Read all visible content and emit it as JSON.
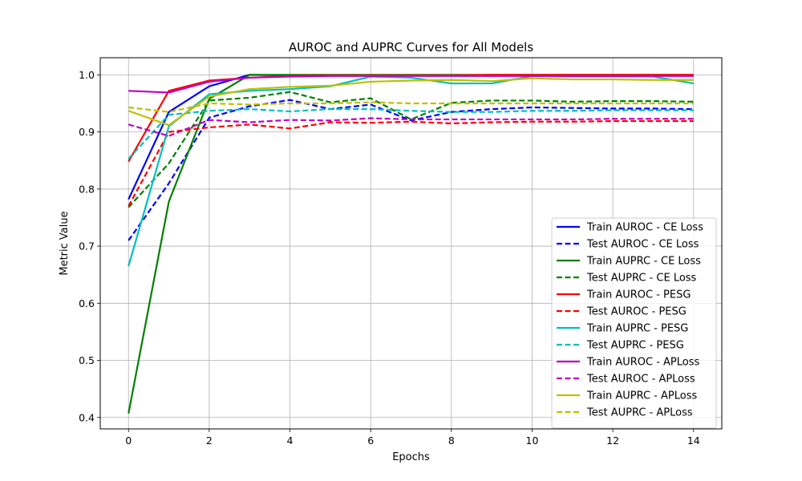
{
  "chart_data": {
    "type": "line",
    "title": "AUROC and AUPRC Curves for All Models",
    "xlabel": "Epochs",
    "ylabel": "Metric Value",
    "xlim": [
      -0.7,
      14.7
    ],
    "ylim": [
      0.38,
      1.03
    ],
    "xticks": [
      0,
      2,
      4,
      6,
      8,
      10,
      12,
      14
    ],
    "yticks": [
      0.4,
      0.5,
      0.6,
      0.7,
      0.8,
      0.9,
      1.0
    ],
    "xtick_labels": [
      "0",
      "2",
      "4",
      "6",
      "8",
      "10",
      "12",
      "14"
    ],
    "ytick_labels": [
      "0.4",
      "0.5",
      "0.6",
      "0.7",
      "0.8",
      "0.9",
      "1.0"
    ],
    "grid": true,
    "legend_position": "lower-right",
    "x": [
      0,
      1,
      2,
      3,
      4,
      5,
      6,
      7,
      8,
      9,
      10,
      11,
      12,
      13,
      14
    ],
    "series": [
      {
        "name": "Train AUROC - CE Loss",
        "color": "#0000ff",
        "dash": "solid",
        "values": [
          0.782,
          0.935,
          0.98,
          1.0,
          0.999,
          0.999,
          0.999,
          0.999,
          0.999,
          0.999,
          0.999,
          0.999,
          0.999,
          0.999,
          0.999
        ]
      },
      {
        "name": "Test AUROC - CE Loss",
        "color": "#0000ff",
        "dash": "dashed",
        "values": [
          0.71,
          0.81,
          0.925,
          0.945,
          0.956,
          0.94,
          0.948,
          0.92,
          0.935,
          0.94,
          0.943,
          0.942,
          0.941,
          0.941,
          0.94
        ]
      },
      {
        "name": "Train AUPRC - CE Loss",
        "color": "#008000",
        "dash": "solid",
        "values": [
          0.407,
          0.778,
          0.958,
          1.0,
          1.0,
          1.0,
          1.0,
          1.0,
          1.0,
          1.0,
          1.0,
          1.0,
          1.0,
          1.0,
          1.0
        ]
      },
      {
        "name": "Test AUPRC - CE Loss",
        "color": "#008000",
        "dash": "dashed",
        "values": [
          0.768,
          0.845,
          0.955,
          0.96,
          0.97,
          0.952,
          0.959,
          0.922,
          0.951,
          0.955,
          0.955,
          0.953,
          0.954,
          0.954,
          0.953
        ]
      },
      {
        "name": "Train AUROC - PESG",
        "color": "#ff0000",
        "dash": "solid",
        "values": [
          0.848,
          0.972,
          0.99,
          0.995,
          0.998,
          0.999,
          0.999,
          0.999,
          0.999,
          1.0,
          1.0,
          1.0,
          1.0,
          1.0,
          1.0
        ]
      },
      {
        "name": "Test AUROC - PESG",
        "color": "#ff0000",
        "dash": "dashed",
        "values": [
          0.77,
          0.9,
          0.908,
          0.913,
          0.906,
          0.917,
          0.916,
          0.918,
          0.915,
          0.917,
          0.918,
          0.918,
          0.919,
          0.919,
          0.919
        ]
      },
      {
        "name": "Train AUPRC - PESG",
        "color": "#00bfbf",
        "dash": "solid",
        "values": [
          0.665,
          0.91,
          0.966,
          0.972,
          0.975,
          0.98,
          0.997,
          0.995,
          0.985,
          0.985,
          0.998,
          0.997,
          0.997,
          0.997,
          0.985
        ]
      },
      {
        "name": "Test AUPRC - PESG",
        "color": "#00bfbf",
        "dash": "dashed",
        "values": [
          0.853,
          0.93,
          0.937,
          0.94,
          0.936,
          0.94,
          0.94,
          0.937,
          0.935,
          0.935,
          0.937,
          0.937,
          0.938,
          0.938,
          0.938
        ]
      },
      {
        "name": "Train AUROC - APLoss",
        "color": "#bf00bf",
        "dash": "solid",
        "values": [
          0.972,
          0.969,
          0.988,
          0.995,
          0.997,
          0.998,
          0.998,
          0.998,
          0.998,
          0.998,
          0.998,
          0.998,
          0.998,
          0.998,
          0.998
        ]
      },
      {
        "name": "Test AUROC - APLoss",
        "color": "#bf00bf",
        "dash": "dashed",
        "values": [
          0.913,
          0.893,
          0.921,
          0.917,
          0.921,
          0.92,
          0.924,
          0.922,
          0.922,
          0.922,
          0.922,
          0.922,
          0.923,
          0.923,
          0.923
        ]
      },
      {
        "name": "Train AUPRC - APLoss",
        "color": "#bfbf00",
        "dash": "solid",
        "values": [
          0.937,
          0.912,
          0.962,
          0.975,
          0.979,
          0.981,
          0.988,
          0.99,
          0.991,
          0.989,
          0.994,
          0.992,
          0.992,
          0.991,
          0.991
        ]
      },
      {
        "name": "Test AUPRC - APLoss",
        "color": "#bfbf00",
        "dash": "dashed",
        "values": [
          0.943,
          0.935,
          0.95,
          0.948,
          0.95,
          0.95,
          0.952,
          0.95,
          0.95,
          0.95,
          0.95,
          0.95,
          0.95,
          0.95,
          0.95
        ]
      }
    ]
  }
}
